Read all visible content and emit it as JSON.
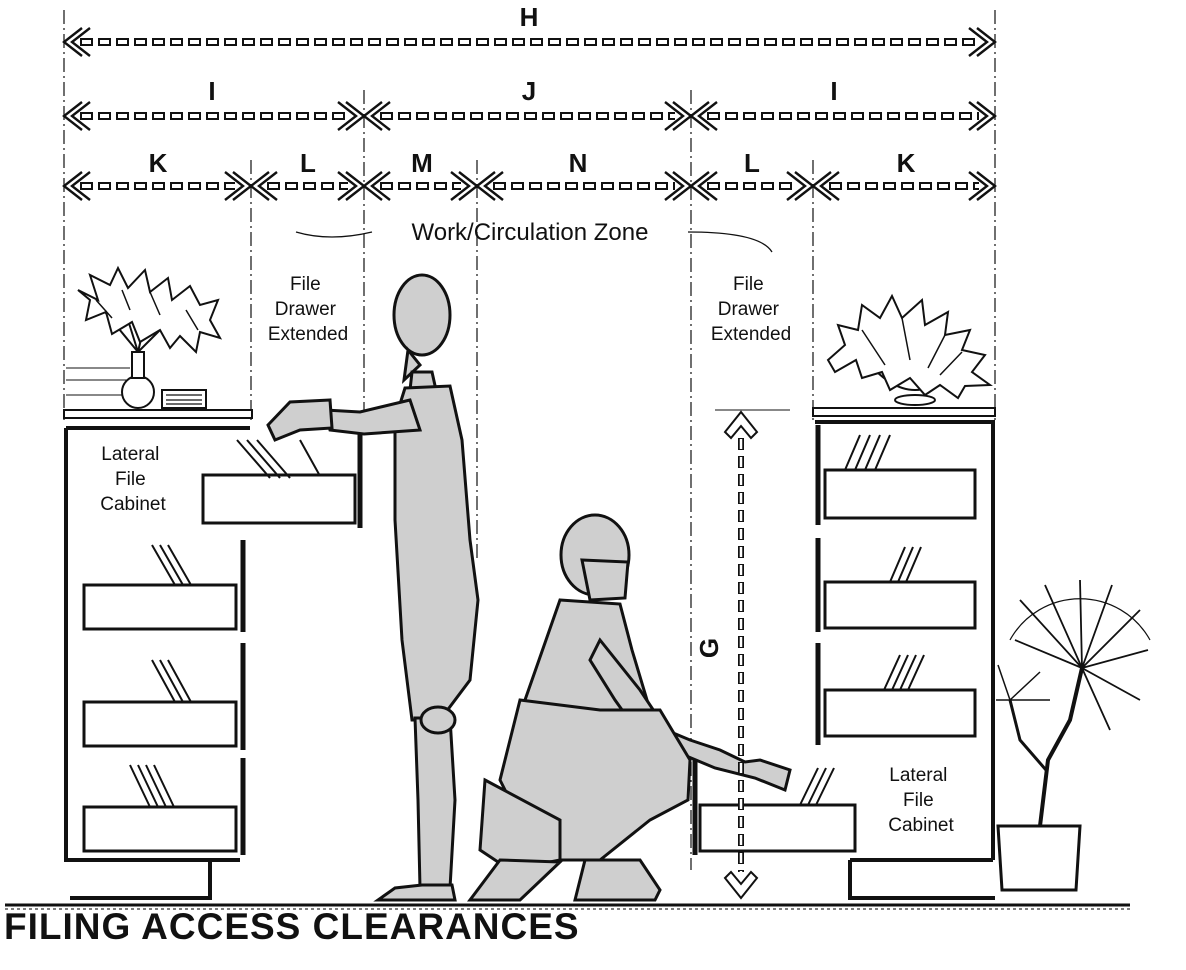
{
  "title": "FILING  ACCESS CLEARANCES",
  "dimensions": {
    "overall": "H",
    "outer": "I",
    "center": "J",
    "cabinet_depth": "K",
    "drawer_extension": "L",
    "standing_zone": "M",
    "passage_zone": "N",
    "vertical": "G"
  },
  "labels": {
    "work_zone": "Work/Circulation Zone",
    "drawer_left": [
      "File",
      "Drawer",
      "Extended"
    ],
    "drawer_right": [
      "File",
      "Drawer",
      "Extended"
    ],
    "cabinet_left": [
      "Lateral",
      "File",
      "Cabinet"
    ],
    "cabinet_right": [
      "Lateral",
      "File",
      "Cabinet"
    ]
  }
}
